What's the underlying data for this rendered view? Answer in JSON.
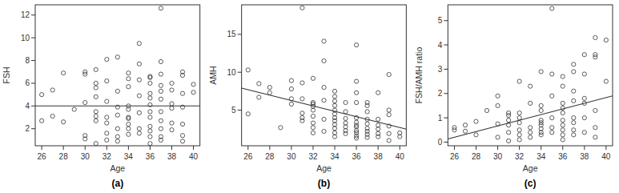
{
  "chart_data": [
    {
      "type": "scatter",
      "title": "(a)",
      "x_label": "Age",
      "y_label": "FSH",
      "color": "#333333",
      "marker": "open-circle",
      "xlim": [
        25.4,
        40.6
      ],
      "ylim": [
        0.5,
        12.9
      ],
      "xticks": [
        26,
        28,
        30,
        32,
        34,
        36,
        38,
        40
      ],
      "yticks": [
        2,
        4,
        6,
        8,
        10,
        12
      ],
      "x": [
        26,
        26,
        27,
        27,
        28,
        28,
        29,
        30,
        30,
        30,
        30,
        30,
        31,
        31,
        31,
        31,
        31,
        31,
        31,
        31,
        32,
        32,
        32,
        32,
        32,
        32,
        32,
        33,
        33,
        33,
        33,
        33,
        33,
        33,
        34,
        34,
        34,
        34,
        34,
        34,
        34,
        34,
        34,
        34,
        35,
        35,
        35,
        35,
        35,
        35,
        35,
        36,
        36,
        36,
        36,
        36,
        36,
        36,
        36,
        36,
        36,
        36,
        36,
        37,
        37,
        37,
        37,
        37,
        37,
        37,
        37,
        37,
        37,
        37,
        38,
        38,
        38,
        38,
        38,
        38,
        39,
        39,
        39,
        39,
        39,
        39,
        39,
        40,
        40
      ],
      "values": [
        2.7,
        5.0,
        5.4,
        3.1,
        2.6,
        6.9,
        3.7,
        7.0,
        6.8,
        4.3,
        1.4,
        1.1,
        7.2,
        5.6,
        3.5,
        3.1,
        2.7,
        0.7,
        6.0,
        4.8,
        8.1,
        6.2,
        4.4,
        3.0,
        2.5,
        1.6,
        1.0,
        8.3,
        5.3,
        3.9,
        3.2,
        2.0,
        1.3,
        0.9,
        6.4,
        5.7,
        4.0,
        3.7,
        3.0,
        2.9,
        2.4,
        2.0,
        1.5,
        6.9,
        9.5,
        7.7,
        6.3,
        4.9,
        3.4,
        2.0,
        1.6,
        6.6,
        6.0,
        5.1,
        4.7,
        4.1,
        3.5,
        3.0,
        2.2,
        1.8,
        1.3,
        0.7,
        6.5,
        12.6,
        7.9,
        6.8,
        5.8,
        5.3,
        4.6,
        3.5,
        2.7,
        2.0,
        1.3,
        1.0,
        6.0,
        5.4,
        4.2,
        3.8,
        2.5,
        1.9,
        7.0,
        6.7,
        5.1,
        3.9,
        2.4,
        1.4,
        0.9,
        5.9,
        5.2
      ],
      "fit_line": {
        "x": [
          25.4,
          40.6
        ],
        "values": [
          4.0,
          4.0
        ]
      }
    },
    {
      "type": "scatter",
      "title": "(b)",
      "x_label": "Age",
      "y_label": "AMH",
      "color": "#333333",
      "marker": "open-circle",
      "xlim": [
        25.4,
        40.6
      ],
      "ylim": [
        0.3,
        18.9
      ],
      "xticks": [
        26,
        28,
        30,
        32,
        34,
        36,
        38,
        40
      ],
      "yticks": [
        5,
        10,
        15
      ],
      "x": [
        26,
        26,
        27,
        27,
        28,
        28,
        29,
        30,
        30,
        30,
        30,
        31,
        31,
        31,
        31,
        31,
        31,
        32,
        32,
        32,
        32,
        32,
        32,
        32,
        32,
        32,
        33,
        33,
        33,
        33,
        33,
        33,
        34,
        34,
        34,
        34,
        34,
        34,
        34,
        34,
        34,
        34,
        34,
        34,
        35,
        35,
        35,
        35,
        35,
        35,
        35,
        36,
        36,
        36,
        36,
        36,
        36,
        36,
        36,
        36,
        36,
        36,
        36,
        37,
        37,
        37,
        37,
        37,
        37,
        37,
        37,
        37,
        38,
        38,
        38,
        38,
        38,
        38,
        39,
        39,
        39,
        39,
        39,
        39,
        40,
        40
      ],
      "values": [
        10.3,
        4.5,
        8.5,
        6.7,
        7.3,
        8.0,
        2.7,
        8.9,
        7.8,
        6.5,
        5.8,
        8.6,
        6.5,
        4.6,
        4.0,
        3.6,
        18.5,
        6.0,
        5.8,
        5.5,
        5.0,
        4.2,
        3.3,
        2.7,
        2.0,
        9.2,
        14.1,
        11.5,
        8.0,
        6.3,
        3.8,
        2.2,
        7.5,
        6.8,
        6.2,
        5.6,
        5.0,
        4.5,
        4.0,
        3.6,
        3.1,
        2.6,
        2.0,
        1.5,
        6.0,
        4.8,
        3.9,
        3.3,
        2.8,
        2.3,
        1.9,
        13.6,
        8.8,
        7.3,
        6.0,
        4.0,
        3.4,
        3.0,
        2.8,
        2.3,
        2.0,
        1.6,
        1.3,
        6.0,
        5.6,
        4.8,
        3.8,
        3.2,
        2.6,
        2.2,
        1.8,
        1.4,
        7.3,
        3.8,
        3.0,
        2.5,
        1.9,
        1.5,
        9.7,
        5.0,
        4.4,
        2.9,
        1.9,
        1.0,
        2.0,
        1.5
      ],
      "fit_line": {
        "x": [
          25.4,
          40.6
        ],
        "values": [
          7.9,
          2.5
        ]
      }
    },
    {
      "type": "scatter",
      "title": "(c)",
      "x_label": "Age",
      "y_label": "FSH/AMH ratio",
      "color": "#333333",
      "marker": "open-circle",
      "xlim": [
        25.4,
        40.6
      ],
      "ylim": [
        -0.15,
        5.65
      ],
      "xticks": [
        26,
        28,
        30,
        32,
        34,
        36,
        38,
        40
      ],
      "yticks": [
        0,
        1,
        2,
        3,
        4,
        5
      ],
      "x": [
        26,
        26,
        27,
        27,
        28,
        28,
        29,
        30,
        30,
        30,
        30,
        31,
        31,
        31,
        31,
        31,
        31,
        32,
        32,
        32,
        32,
        32,
        32,
        32,
        33,
        33,
        33,
        33,
        33,
        34,
        34,
        34,
        34,
        34,
        34,
        34,
        34,
        34,
        35,
        35,
        35,
        35,
        35,
        35,
        36,
        36,
        36,
        36,
        36,
        36,
        36,
        36,
        36,
        36,
        37,
        37,
        37,
        37,
        37,
        37,
        37,
        37,
        38,
        38,
        38,
        38,
        38,
        38,
        39,
        39,
        39,
        39,
        39,
        39,
        40,
        40
      ],
      "values": [
        0.5,
        0.6,
        0.45,
        0.7,
        0.3,
        0.85,
        1.3,
        0.75,
        1.9,
        1.5,
        0.2,
        1.2,
        1.1,
        0.9,
        0.7,
        0.4,
        0.05,
        2.5,
        1.2,
        1.0,
        0.8,
        0.5,
        0.3,
        0.1,
        2.3,
        1.6,
        0.6,
        0.4,
        0.2,
        2.9,
        1.5,
        1.3,
        0.9,
        0.8,
        0.7,
        0.55,
        0.4,
        0.3,
        5.5,
        2.8,
        1.9,
        1.0,
        0.6,
        0.4,
        2.7,
        2.3,
        1.6,
        1.4,
        1.2,
        0.9,
        0.7,
        0.5,
        0.3,
        0.1,
        3.2,
        2.9,
        2.1,
        1.7,
        1.0,
        0.8,
        0.5,
        0.3,
        3.6,
        2.8,
        1.8,
        1.6,
        1.0,
        0.4,
        4.3,
        3.5,
        3.6,
        1.3,
        0.6,
        0.2,
        4.2,
        2.5
      ],
      "fit_line": {
        "x": [
          25.4,
          40.6
        ],
        "values": [
          0.13,
          1.9
        ]
      }
    }
  ]
}
